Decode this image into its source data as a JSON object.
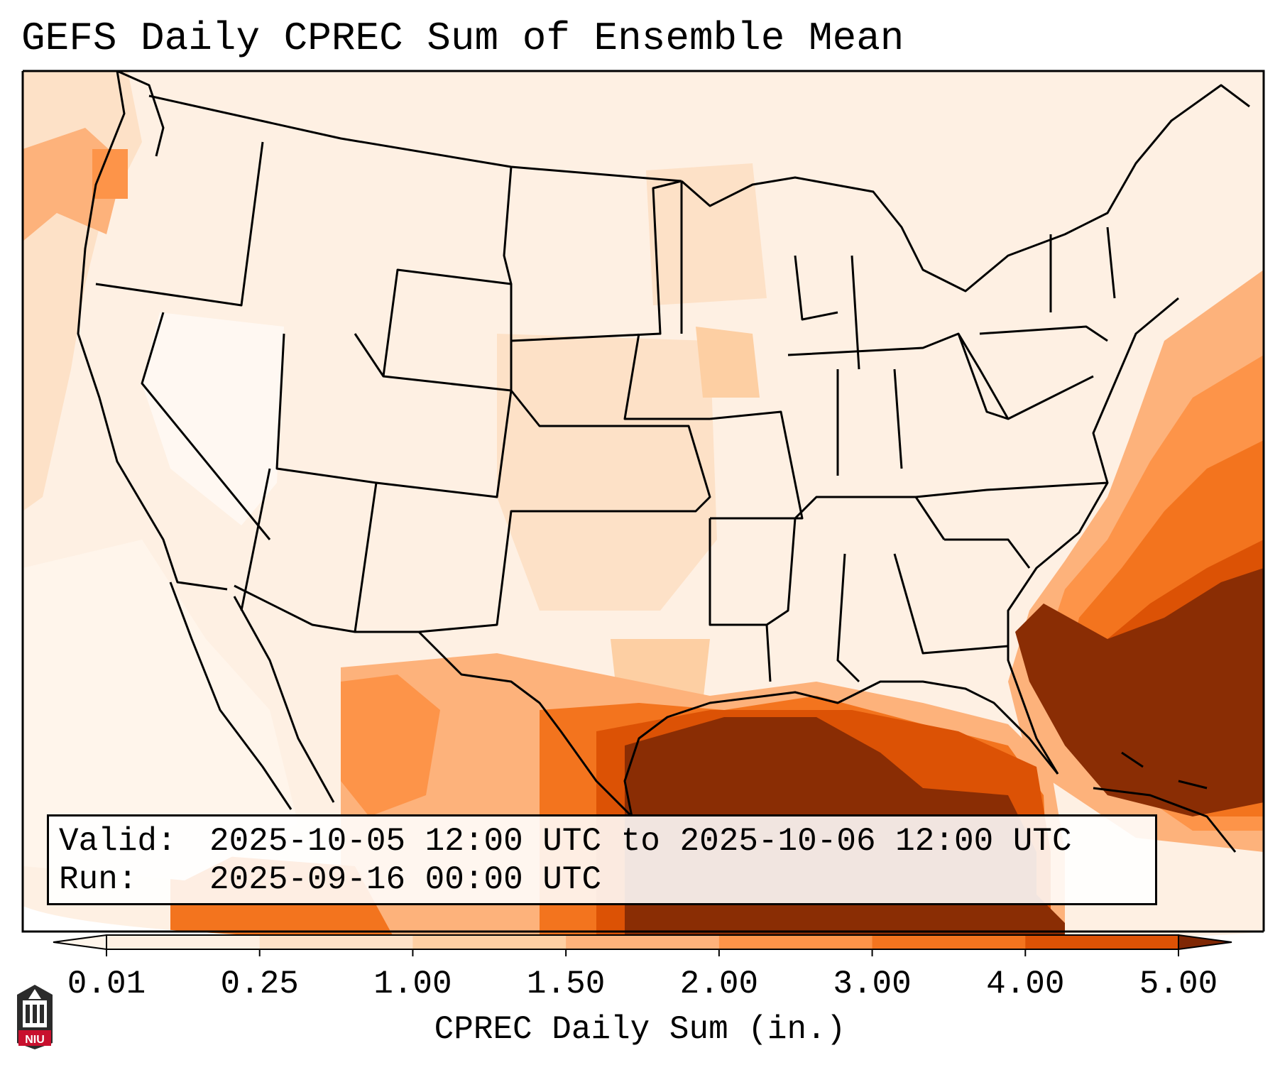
{
  "title": "GEFS Daily CPREC Sum of Ensemble Mean",
  "info_box": {
    "valid_label": "Valid:",
    "valid_value": "2025-10-05 12:00 UTC to 2025-10-06 12:00 UTC",
    "run_label": "Run:",
    "run_value": "2025-09-16 00:00 UTC"
  },
  "colorbar": {
    "label": "CPREC Daily Sum (in.)",
    "ticks": [
      "0.01",
      "0.25",
      "1.00",
      "1.50",
      "2.00",
      "3.00",
      "4.00",
      "5.00"
    ],
    "colors": [
      "#fef0e3",
      "#fde1c7",
      "#fdcfa3",
      "#fdb27b",
      "#fd9449",
      "#f3741e",
      "#dc5205",
      "#8a2d04"
    ],
    "under_color": "#fff5eb",
    "over_color": "#7f2704"
  },
  "logo": {
    "icon": "niu-tower-icon",
    "text": "NIU",
    "color": "#c8102e"
  },
  "map": {
    "projection": "Lambert conformal (CONUS)",
    "region": "Contiguous United States, northern Mexico, Gulf of Mexico, western Atlantic",
    "heaviest_precip": "Gulf of Mexico, Florida, and the Atlantic east of the Southeast coast"
  }
}
